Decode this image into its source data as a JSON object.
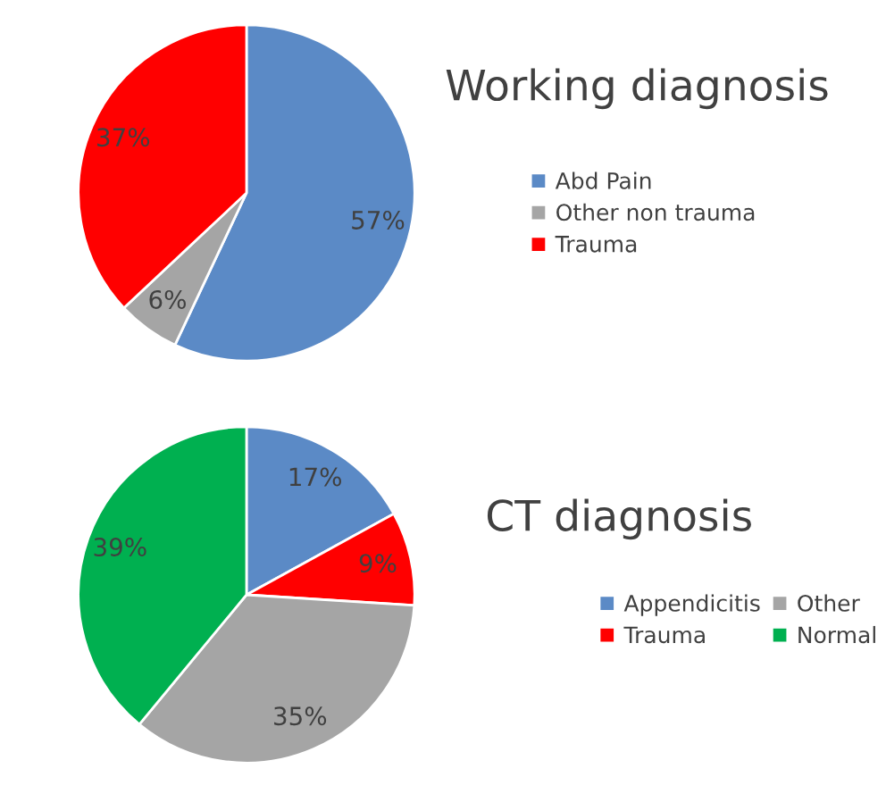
{
  "chart_data": [
    {
      "type": "pie",
      "title": "Working diagnosis",
      "categories": [
        "Abd Pain",
        "Other non trauma",
        "Trauma"
      ],
      "values": [
        57,
        6,
        37
      ],
      "value_labels": [
        "57%",
        "6%",
        "37%"
      ],
      "colors": [
        "#5b8ac6",
        "#a5a5a5",
        "#ff0000"
      ],
      "legend": "right"
    },
    {
      "type": "pie",
      "title": "CT diagnosis",
      "categories": [
        "Appendicitis",
        "Trauma",
        "Other",
        "Normal"
      ],
      "values": [
        17,
        9,
        35,
        39
      ],
      "value_labels": [
        "17%",
        "9%",
        "35%",
        "39%"
      ],
      "colors": [
        "#5b8ac6",
        "#ff0000",
        "#a5a5a5",
        "#00b050"
      ],
      "legend": "right"
    }
  ]
}
